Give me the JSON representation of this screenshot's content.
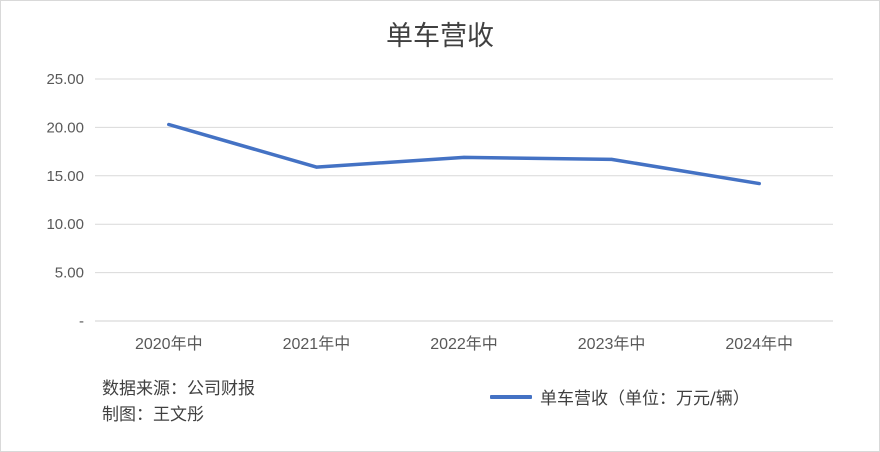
{
  "chart_data": {
    "type": "line",
    "title": "单车营收",
    "categories": [
      "2020年中",
      "2021年中",
      "2022年中",
      "2023年中",
      "2024年中"
    ],
    "series": [
      {
        "name": "单车营收（单位：万元/辆）",
        "values": [
          20.3,
          15.9,
          16.9,
          16.7,
          14.2
        ]
      }
    ],
    "yticks": [
      "-",
      "5.00",
      "10.00",
      "15.00",
      "20.00",
      "25.00"
    ],
    "ylim": [
      0,
      25
    ],
    "grid": true,
    "legend_position": "bottom-right",
    "color": "#4472c4"
  },
  "footer": {
    "source": "数据来源：公司财报",
    "author": "制图：王文彤"
  }
}
